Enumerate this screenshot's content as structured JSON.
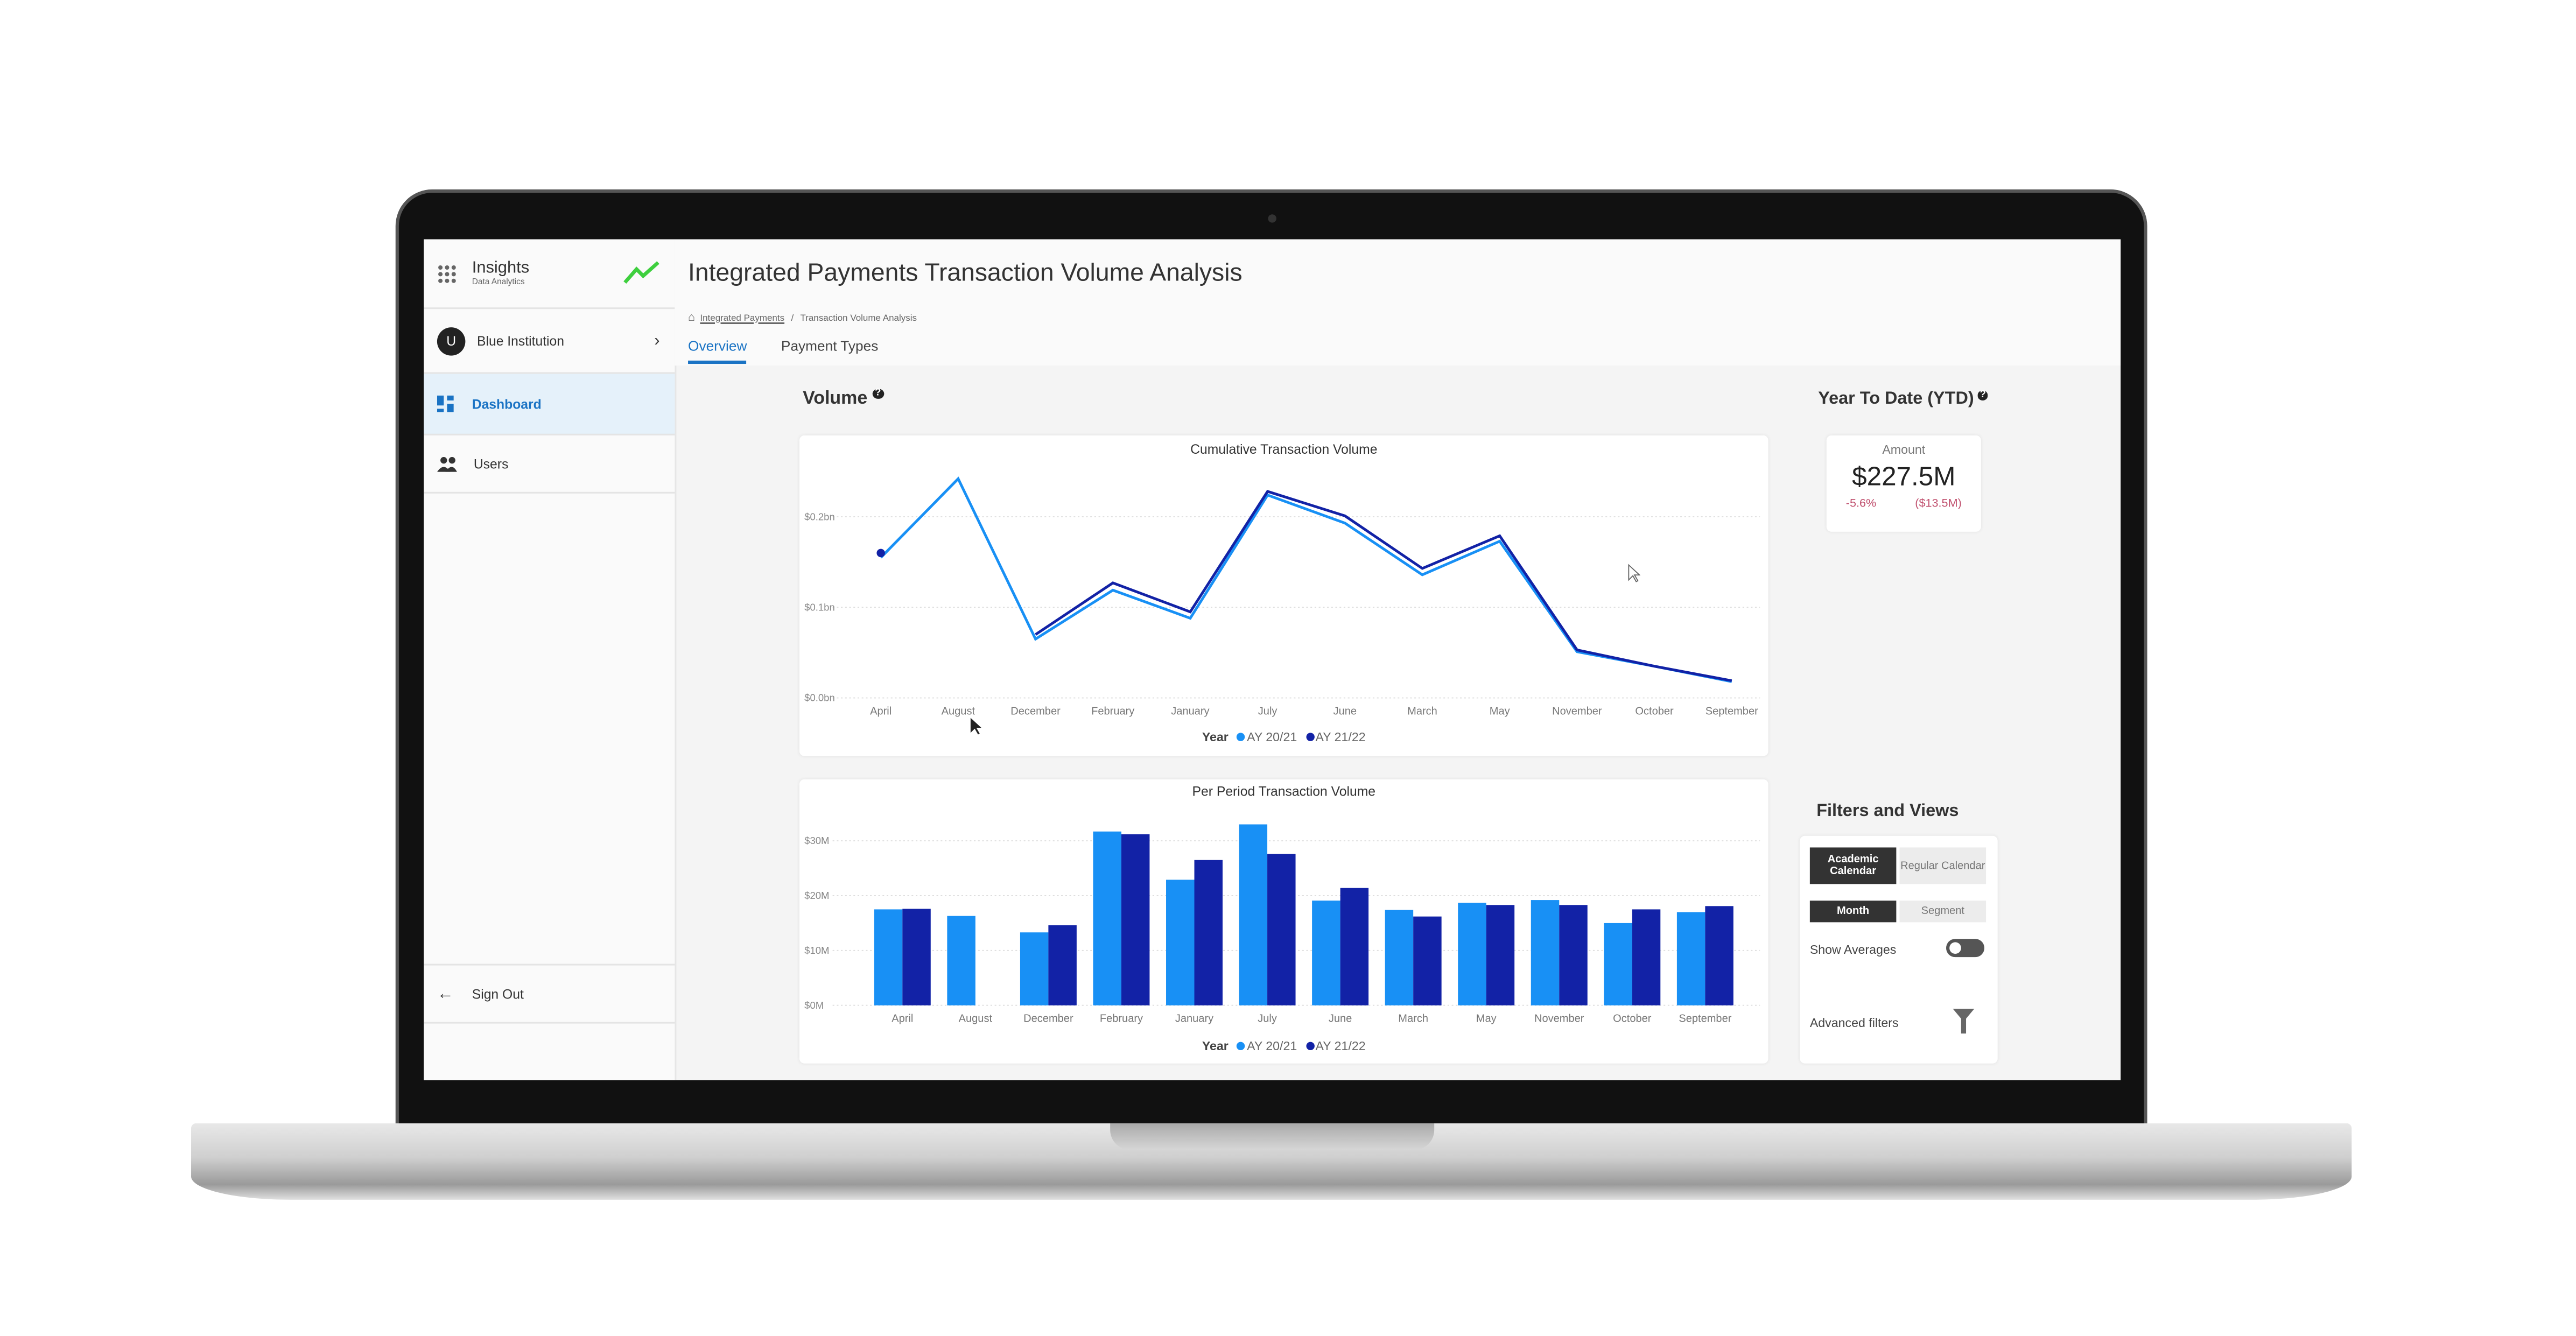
{
  "app": {
    "name": "Insights",
    "subtitle": "Data Analytics",
    "logo_icon": "trend-up-icon",
    "logo_color": "#3ecf3e"
  },
  "sidebar": {
    "institution": {
      "avatar": "U",
      "label": "Blue Institution"
    },
    "items": [
      {
        "label": "Dashboard",
        "icon": "dashboard-icon",
        "active": true
      },
      {
        "label": "Users",
        "icon": "users-icon",
        "active": false
      }
    ],
    "sign_out": "Sign Out"
  },
  "header": {
    "title": "Integrated Payments Transaction Volume Analysis",
    "breadcrumb": [
      "Integrated Payments",
      "Transaction Volume Analysis"
    ],
    "tabs": [
      {
        "label": "Overview",
        "active": true
      },
      {
        "label": "Payment Types",
        "active": false
      }
    ]
  },
  "volume": {
    "heading": "Volume"
  },
  "ytd": {
    "heading": "Year To Date (YTD)",
    "label": "Amount",
    "value": "$227.5M",
    "change_pct": "-5.6%",
    "change_abs": "($13.5M)"
  },
  "filters": {
    "heading": "Filters and Views",
    "calendar": [
      "Academic Calendar",
      "Regular Calendar"
    ],
    "calendar_selected": "Academic Calendar",
    "period": [
      "Month",
      "Segment"
    ],
    "period_selected": "Month",
    "show_averages": "Show Averages",
    "show_averages_on": false,
    "advanced": "Advanced filters"
  },
  "colors": {
    "ay2021": "#1890f5",
    "ay2122": "#1222a6",
    "accent": "#1a73c4"
  },
  "chart_data": [
    {
      "type": "line",
      "title": "Cumulative Transaction Volume",
      "categories": [
        "April",
        "August",
        "December",
        "February",
        "January",
        "July",
        "June",
        "March",
        "May",
        "November",
        "October",
        "September"
      ],
      "ytick_labels": [
        "$0.0bn",
        "$0.1bn",
        "$0.2bn"
      ],
      "yticks": [
        0,
        0.1,
        0.2
      ],
      "ylim": [
        0,
        0.25
      ],
      "grid": true,
      "legend_title": "Year",
      "legend": "bottom",
      "series": [
        {
          "name": "AY 20/21",
          "values": [
            0.155,
            0.242,
            0.065,
            0.119,
            0.088,
            0.224,
            0.193,
            0.136,
            0.173,
            0.051,
            0.035,
            0.018
          ]
        },
        {
          "name": "AY 21/22",
          "values": [
            0.16,
            null,
            0.07,
            0.127,
            0.095,
            0.228,
            0.201,
            0.143,
            0.179,
            0.053,
            0.035,
            0.019
          ]
        }
      ]
    },
    {
      "type": "bar",
      "title": "Per Period Transaction Volume",
      "categories": [
        "April",
        "August",
        "December",
        "February",
        "January",
        "July",
        "June",
        "March",
        "May",
        "November",
        "October",
        "September"
      ],
      "ytick_labels": [
        "$0M",
        "$10M",
        "$20M",
        "$30M"
      ],
      "yticks": [
        0,
        10,
        20,
        30
      ],
      "ylim": [
        0,
        34
      ],
      "grid": true,
      "legend_title": "Year",
      "legend": "bottom",
      "series": [
        {
          "name": "AY 20/21",
          "values": [
            17.5,
            16.3,
            13.3,
            31.7,
            22.9,
            33.0,
            19.1,
            17.4,
            18.7,
            19.2,
            15.0,
            17.0
          ]
        },
        {
          "name": "AY 21/22",
          "values": [
            17.6,
            null,
            14.6,
            31.2,
            26.5,
            27.6,
            21.4,
            16.2,
            18.3,
            18.3,
            17.5,
            18.1
          ]
        }
      ]
    }
  ]
}
